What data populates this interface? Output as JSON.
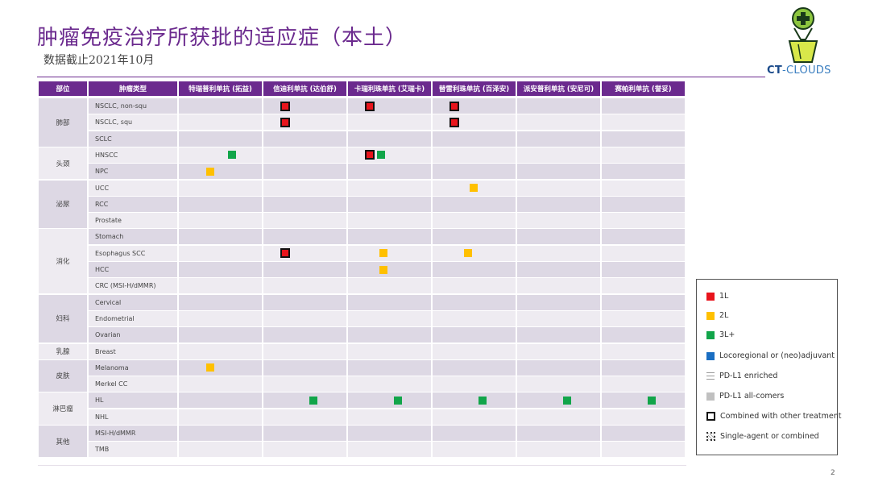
{
  "header": {
    "title": "肿瘤免疫治疗所获批的适应症（本土）",
    "subtitle": "数据截止2021年10月"
  },
  "logo": {
    "text_bold": "CT",
    "text_rest": "-CLOUDS",
    "icon": "lightbulb-cross-icon"
  },
  "colors": {
    "accent": "#6b2a8e",
    "row_odd": "#ddd8e4",
    "row_even": "#eeebf1",
    "line_1L": "#e8141c",
    "line_2L": "#ffc000",
    "line_3L_plus": "#12a54a",
    "neoadjuvant": "#1a6ec2"
  },
  "table": {
    "columns": [
      "部位",
      "肿瘤类型",
      "特瑞普利单抗 (拓益)",
      "信迪利单抗 (达伯舒)",
      "卡瑞利珠单抗 (艾瑞卡)",
      "替雷利珠单抗 (百泽安)",
      "派安普利单抗 (安尼可)",
      "赛帕利单抗 (誉妥)"
    ],
    "groups": [
      {
        "site": "肺部",
        "rows": [
          "NSCLC, non-squ",
          "NSCLC, squ",
          "SCLC"
        ]
      },
      {
        "site": "头颈",
        "rows": [
          "HNSCC",
          "NPC"
        ]
      },
      {
        "site": "泌尿",
        "rows": [
          "UCC",
          "RCC",
          "Prostate"
        ]
      },
      {
        "site": "消化",
        "rows": [
          "Stomach",
          "Esophagus SCC",
          "HCC",
          "CRC (MSI-H/dMMR)"
        ]
      },
      {
        "site": "妇科",
        "rows": [
          "Cervical",
          "Endometrial",
          "Ovarian"
        ]
      },
      {
        "site": "乳腺",
        "rows": [
          "Breast"
        ]
      },
      {
        "site": "皮肤",
        "rows": [
          "Melanoma",
          "Merkel CC"
        ]
      },
      {
        "site": "淋巴瘤",
        "rows": [
          "HL",
          "NHL"
        ]
      },
      {
        "site": "其他",
        "rows": [
          "MSI-H/dMMR",
          "TMB"
        ]
      }
    ],
    "markers": [
      {
        "row": "NSCLC, non-squ",
        "drug": "信迪利单抗 (达伯舒)",
        "line": "1L",
        "combined": true
      },
      {
        "row": "NSCLC, non-squ",
        "drug": "卡瑞利珠单抗 (艾瑞卡)",
        "line": "1L",
        "combined": true
      },
      {
        "row": "NSCLC, non-squ",
        "drug": "替雷利珠单抗 (百泽安)",
        "line": "1L",
        "combined": true
      },
      {
        "row": "NSCLC, squ",
        "drug": "信迪利单抗 (达伯舒)",
        "line": "1L",
        "combined": true
      },
      {
        "row": "NSCLC, squ",
        "drug": "替雷利珠单抗 (百泽安)",
        "line": "1L",
        "combined": true
      },
      {
        "row": "HNSCC",
        "drug": "特瑞普利单抗 (拓益)",
        "line": "3L+",
        "combined": false
      },
      {
        "row": "HNSCC",
        "drug": "卡瑞利珠单抗 (艾瑞卡)",
        "line": "1L",
        "combined": true
      },
      {
        "row": "HNSCC",
        "drug": "卡瑞利珠单抗 (艾瑞卡)",
        "line": "3L+",
        "combined": false
      },
      {
        "row": "NPC",
        "drug": "特瑞普利单抗 (拓益)",
        "line": "2L",
        "combined": false
      },
      {
        "row": "UCC",
        "drug": "替雷利珠单抗 (百泽安)",
        "line": "2L",
        "combined": false
      },
      {
        "row": "Esophagus SCC",
        "drug": "信迪利单抗 (达伯舒)",
        "line": "1L",
        "combined": true
      },
      {
        "row": "Esophagus SCC",
        "drug": "卡瑞利珠单抗 (艾瑞卡)",
        "line": "2L",
        "combined": false
      },
      {
        "row": "Esophagus SCC",
        "drug": "替雷利珠单抗 (百泽安)",
        "line": "2L",
        "combined": false
      },
      {
        "row": "HCC",
        "drug": "卡瑞利珠单抗 (艾瑞卡)",
        "line": "2L",
        "combined": false
      },
      {
        "row": "Melanoma",
        "drug": "特瑞普利单抗 (拓益)",
        "line": "2L",
        "combined": false
      },
      {
        "row": "HL",
        "drug": "信迪利单抗 (达伯舒)",
        "line": "3L+",
        "combined": false
      },
      {
        "row": "HL",
        "drug": "卡瑞利珠单抗 (艾瑞卡)",
        "line": "3L+",
        "combined": false
      },
      {
        "row": "HL",
        "drug": "替雷利珠单抗 (百泽安)",
        "line": "3L+",
        "combined": false
      },
      {
        "row": "HL",
        "drug": "派安普利单抗 (安尼可)",
        "line": "3L+",
        "combined": false
      },
      {
        "row": "HL",
        "drug": "赛帕利单抗 (誉妥)",
        "line": "3L+",
        "combined": false
      }
    ]
  },
  "legend": {
    "items": [
      {
        "label": "1L",
        "swatch": "red"
      },
      {
        "label": "2L",
        "swatch": "orange"
      },
      {
        "label": "3L+",
        "swatch": "green"
      },
      {
        "label": "Locoregional or (neo)adjuvant",
        "swatch": "blue"
      },
      {
        "label": "PD-L1 enriched",
        "swatch": "lines"
      },
      {
        "label": "PD-L1 all-comers",
        "swatch": "gray"
      },
      {
        "label": "Combined with other treatment",
        "swatch": "boxed"
      },
      {
        "label": "Single-agent or combined",
        "swatch": "dotted"
      }
    ]
  },
  "page_number": "2"
}
